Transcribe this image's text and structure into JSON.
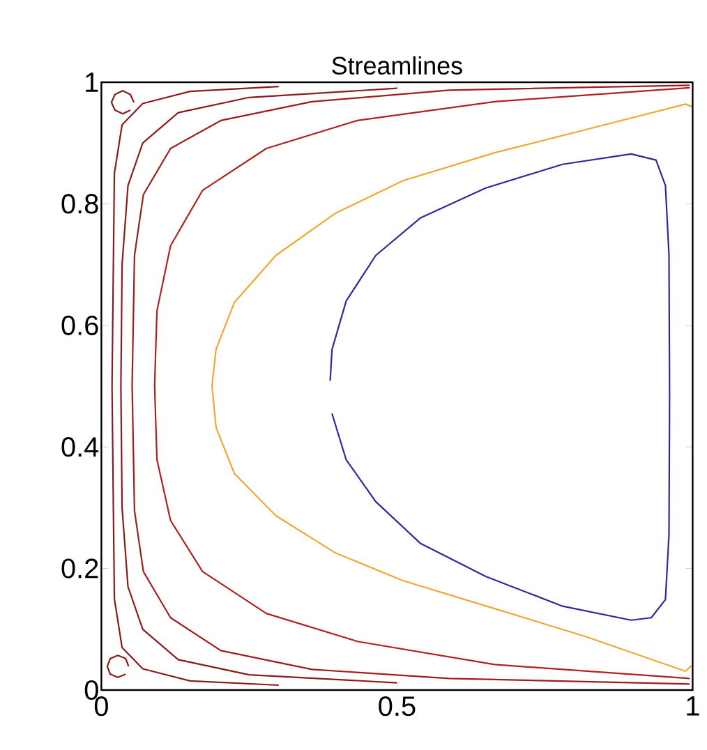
{
  "chart_data": {
    "type": "line",
    "title": "Streamlines",
    "xlim": [
      0,
      1
    ],
    "ylim": [
      0,
      1
    ],
    "xticks": [
      0,
      0.5,
      1
    ],
    "yticks": [
      0,
      0.2,
      0.4,
      0.6,
      0.8,
      1
    ],
    "grid": false,
    "marker": "none",
    "line_style": "solid",
    "series": [
      {
        "color": "#8b1a1a",
        "x": [
          0.3,
          0.15,
          0.07,
          0.035,
          0.022,
          0.018,
          0.022,
          0.035,
          0.07,
          0.15,
          0.3
        ],
        "values": [
          0.993,
          0.985,
          0.965,
          0.93,
          0.85,
          0.5,
          0.15,
          0.07,
          0.035,
          0.015,
          0.008
        ]
      },
      {
        "color": "#8b1a1a",
        "x": [
          0.5,
          0.25,
          0.13,
          0.07,
          0.045,
          0.035,
          0.033,
          0.035,
          0.045,
          0.07,
          0.13,
          0.25,
          0.5
        ],
        "values": [
          0.99,
          0.975,
          0.95,
          0.9,
          0.83,
          0.7,
          0.5,
          0.3,
          0.17,
          0.1,
          0.05,
          0.025,
          0.012
        ]
      },
      {
        "color": "#a01c1c",
        "x": [
          0.995,
          0.588,
          0.356,
          0.202,
          0.117,
          0.071,
          0.056,
          0.052,
          0.056,
          0.071,
          0.117,
          0.202,
          0.356,
          0.588,
          0.995
        ],
        "values": [
          0.995,
          0.987,
          0.968,
          0.937,
          0.891,
          0.815,
          0.715,
          0.501,
          0.295,
          0.195,
          0.119,
          0.065,
          0.034,
          0.019,
          0.01
        ]
      },
      {
        "color": "#b02020",
        "x": [
          0.995,
          0.665,
          0.433,
          0.279,
          0.171,
          0.117,
          0.094,
          0.09,
          0.094,
          0.117,
          0.171,
          0.279,
          0.433,
          0.665,
          0.995
        ],
        "values": [
          0.991,
          0.968,
          0.937,
          0.891,
          0.822,
          0.731,
          0.624,
          0.501,
          0.379,
          0.279,
          0.195,
          0.126,
          0.08,
          0.042,
          0.019
        ]
      },
      {
        "color": "#f0a830",
        "x": [
          0.998,
          0.988,
          0.819,
          0.665,
          0.51,
          0.395,
          0.295,
          0.225,
          0.194,
          0.187,
          0.194,
          0.225,
          0.295,
          0.395,
          0.51,
          0.665,
          0.819,
          0.988,
          0.998
        ],
        "values": [
          0.96,
          0.964,
          0.922,
          0.884,
          0.838,
          0.784,
          0.715,
          0.638,
          0.561,
          0.501,
          0.432,
          0.356,
          0.287,
          0.226,
          0.18,
          0.134,
          0.088,
          0.031,
          0.04
        ]
      },
      {
        "color": "#2a2a9a",
        "x": [
          0.387,
          0.39,
          0.414,
          0.464,
          0.54,
          0.65,
          0.78,
          0.896,
          0.938,
          0.954,
          0.96,
          0.961,
          0.96,
          0.954,
          0.93,
          0.896,
          0.78,
          0.65,
          0.54,
          0.464,
          0.414,
          0.39
        ],
        "values": [
          0.509,
          0.56,
          0.64,
          0.715,
          0.777,
          0.826,
          0.865,
          0.882,
          0.872,
          0.83,
          0.715,
          0.486,
          0.256,
          0.149,
          0.119,
          0.115,
          0.138,
          0.187,
          0.241,
          0.31,
          0.379,
          0.455
        ]
      },
      {
        "color": "#8b1a1a",
        "x": [
          0.055,
          0.049,
          0.036,
          0.023,
          0.017,
          0.023,
          0.036,
          0.049
        ],
        "values": [
          0.967,
          0.98,
          0.986,
          0.98,
          0.967,
          0.954,
          0.948,
          0.954
        ]
      },
      {
        "color": "#8b1a1a",
        "x": [
          0.046,
          0.041,
          0.028,
          0.015,
          0.01,
          0.015,
          0.028,
          0.041
        ],
        "values": [
          0.039,
          0.052,
          0.057,
          0.052,
          0.039,
          0.026,
          0.021,
          0.026
        ]
      }
    ]
  }
}
